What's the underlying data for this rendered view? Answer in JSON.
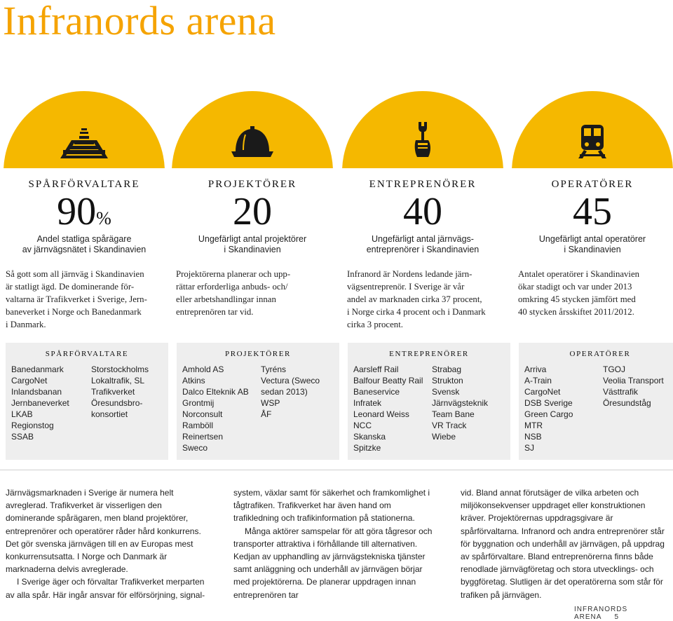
{
  "title": "Infranords arena",
  "columns": [
    {
      "category": "SPÅRFÖRVALTARE",
      "big": "90",
      "big_unit": "%",
      "sub1": "Andel statliga spårägare",
      "sub2": "av järnvägsnätet i Skandinavien",
      "icon": "railway-track-icon",
      "desc": [
        "Så gott som all järnväg i Skandinavien",
        "är statligt ägd. De dominerande för-",
        "valtarna är Trafikverket i Sverige, Jern-",
        "baneverket i Norge och Banedanmark",
        "i Danmark."
      ]
    },
    {
      "category": "PROJEKTÖRER",
      "big": "20",
      "big_unit": "",
      "sub1": "Ungefärligt antal projektörer",
      "sub2": "i Skandinavien",
      "icon": "hard-hat-icon",
      "desc": [
        "Projektörerna planerar och upp-",
        "rättar erforderliga anbuds- och/",
        "eller arbetshandlingar innan",
        "entreprenören tar vid."
      ]
    },
    {
      "category": "ENTREPRENÖRER",
      "big": "40",
      "big_unit": "",
      "sub1": "Ungefärligt antal järnvägs-",
      "sub2": "entreprenörer i Skandinavien",
      "icon": "wrench-hand-icon",
      "desc": [
        "Infranord är Nordens ledande järn-",
        "vägsentreprenör. I Sverige är vår",
        "andel av marknaden cirka 37 procent,",
        "i Norge cirka 4 procent och i Danmark",
        "cirka 3 procent."
      ]
    },
    {
      "category": "OPERATÖRER",
      "big": "45",
      "big_unit": "",
      "sub1": "Ungefärligt antal operatörer",
      "sub2": "i Skandinavien",
      "icon": "train-icon",
      "desc": [
        "Antalet operatörer i Skandinavien",
        "ökar stadigt och var under 2013",
        "omkring 45 stycken jämfört med",
        "40 stycken årsskiftet 2011/2012."
      ]
    }
  ],
  "boxes": [
    {
      "title": "SPÅRFÖRVALTARE",
      "left": [
        "Banedanmark",
        "CargoNet",
        "Inlandsbanan",
        "Jernbaneverket",
        "LKAB",
        "Regionstog",
        "SSAB"
      ],
      "right": [
        "Storstockholms",
        "Lokaltrafik, SL",
        "Trafikverket",
        "Öresundsbro-",
        "konsortiet"
      ]
    },
    {
      "title": "PROJEKTÖRER",
      "left": [
        "Amhold AS",
        "Atkins",
        "Dalco Elteknik AB",
        "Grontmij",
        "Norconsult",
        "Ramböll",
        "Reinertsen",
        "Sweco"
      ],
      "right": [
        "Tyréns",
        "Vectura (Sweco",
        "sedan 2013)",
        "WSP",
        "ÅF"
      ]
    },
    {
      "title": "ENTREPRENÖRER",
      "left": [
        "Aarsleff Rail",
        "Balfour Beatty Rail",
        "Baneservice",
        "Infratek",
        "Leonard Weiss",
        "NCC",
        "Skanska",
        "Spitzke"
      ],
      "right": [
        "Strabag",
        "Strukton",
        "Svensk",
        "Järnvägsteknik",
        "Team Bane",
        "VR Track",
        "Wiebe"
      ]
    },
    {
      "title": "OPERATÖRER",
      "left": [
        "Arriva",
        "A-Train",
        "CargoNet",
        "DSB Sverige",
        "Green Cargo",
        "MTR",
        "NSB",
        "SJ"
      ],
      "right": [
        "TGOJ",
        "Veolia Transport",
        "Västtrafik",
        "Öresundståg"
      ]
    }
  ],
  "body": {
    "col1": [
      "Järnvägsmarknaden i Sverige är numera helt avreglerad. Trafikverket är visserligen den dominerande spårägaren, men bland projektörer, entreprenörer och operatörer råder hård konkurrens. Det gör svenska järnvägen till en av Europas mest konkurrensutsatta. I Norge och Danmark är marknaderna delvis avreglerade.",
      "I Sverige äger och förvaltar Trafikverket merparten av alla spår. Här ingår ansvar för elförsörjning, signal-"
    ],
    "col2": [
      "system, växlar samt för säkerhet och framkomlighet i tågtrafiken. Trafikverket har även hand om trafikledning och trafikinformation på stationerna.",
      "Många aktörer samspelar för att göra tågresor och transporter attraktiva i förhållande till alternativen. Kedjan av upphandling av järnvägstekniska tjänster samt anläggning och underhåll av järnvägen börjar med projektörerna. De planerar uppdragen innan entreprenören tar"
    ],
    "col3": [
      "vid. Bland annat förutsäger de vilka arbeten och miljökonsekvenser uppdraget eller konstruktionen kräver. Projektörernas uppdragsgivare är spårförvaltarna. Infranord och andra entreprenörer står för byggnation och underhåll av järnvägen, på uppdrag av spårförvaltare. Bland entreprenörerna finns både renodlade järnvägföretag och stora utvecklings- och byggföretag. Slutligen är det operatörerna som står för trafiken på järnvägen."
    ]
  },
  "footer": {
    "label": "INFRANORDS ARENA",
    "page": "5"
  },
  "colors": {
    "accent": "#f5a300",
    "arc": "#f5b800",
    "box": "#eeeeee"
  }
}
